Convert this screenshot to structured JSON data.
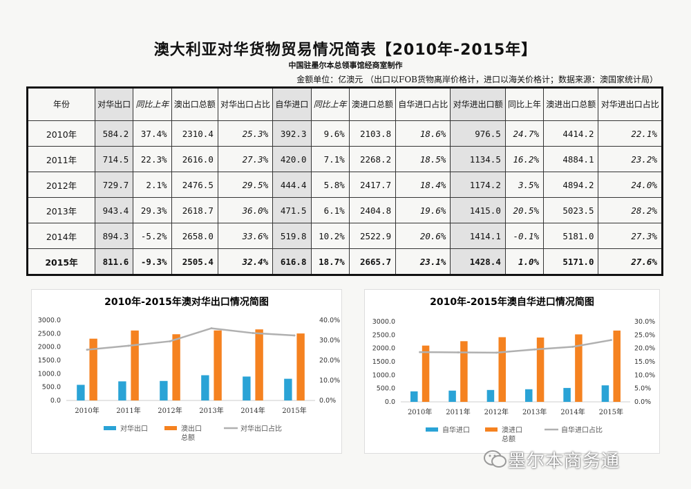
{
  "title": "澳大利亚对华货物贸易情况简表【2010年-2015年】",
  "subtitle": "中国驻墨尔本总领事馆经商室制作",
  "unit_note": "金额单位：亿澳元 （出口以FOB货物离岸价格计，进口以海关价格计；数据来源：澳国家统计局）",
  "table": {
    "headers": [
      "年份",
      "对华出口",
      "同比上年",
      "澳出口总额",
      "对华出口占比",
      "自华进口",
      "同比上年",
      "澳进口总额",
      "自华进口占比",
      "对华进出口额",
      "同比上年",
      "澳进出口总额",
      "对华进出口占比"
    ],
    "rows": [
      [
        "2010年",
        "584.2",
        "37.4%",
        "2310.4",
        "25.3%",
        "392.3",
        "9.6%",
        "2103.8",
        "18.6%",
        "976.5",
        "24.7%",
        "4414.2",
        "22.1%"
      ],
      [
        "2011年",
        "714.5",
        "22.3%",
        "2616.0",
        "27.3%",
        "420.0",
        "7.1%",
        "2268.2",
        "18.5%",
        "1134.5",
        "16.2%",
        "4884.1",
        "23.2%"
      ],
      [
        "2012年",
        "729.7",
        "2.1%",
        "2476.5",
        "29.5%",
        "444.4",
        "5.8%",
        "2417.7",
        "18.4%",
        "1174.2",
        "3.5%",
        "4894.2",
        "24.0%"
      ],
      [
        "2013年",
        "943.4",
        "29.3%",
        "2618.7",
        "36.0%",
        "471.5",
        "6.1%",
        "2404.8",
        "19.6%",
        "1415.0",
        "20.5%",
        "5023.5",
        "28.2%"
      ],
      [
        "2014年",
        "894.3",
        "-5.2%",
        "2658.0",
        "33.6%",
        "519.8",
        "10.2%",
        "2522.9",
        "20.6%",
        "1414.1",
        "-0.1%",
        "5181.0",
        "27.3%"
      ],
      [
        "2015年",
        "811.6",
        "-9.3%",
        "2505.4",
        "32.4%",
        "616.8",
        "18.7%",
        "2665.7",
        "23.1%",
        "1428.4",
        "1.0%",
        "5171.0",
        "27.6%"
      ]
    ]
  },
  "chart_data": [
    {
      "type": "bar",
      "title": "2010年-2015年澳对华出口情况简图",
      "categories": [
        "2010年",
        "2011年",
        "2012年",
        "2013年",
        "2014年",
        "2015年"
      ],
      "series": [
        {
          "name": "对华出口",
          "kind": "bar",
          "color": "#2aa3d6",
          "values": [
            584.2,
            714.5,
            729.7,
            943.4,
            894.3,
            811.6
          ]
        },
        {
          "name": "澳出口总额",
          "kind": "bar",
          "color": "#f58220",
          "values": [
            2310.4,
            2616.0,
            2476.5,
            2618.7,
            2658.0,
            2505.4
          ]
        },
        {
          "name": "对华出口占比",
          "kind": "line",
          "axis": "right",
          "color": "#b0b0b0",
          "values": [
            25.3,
            27.3,
            29.5,
            36.0,
            33.6,
            32.4
          ]
        }
      ],
      "ylim": [
        0,
        3000
      ],
      "yticks": [
        "0.0",
        "500.0",
        "1000.0",
        "1500.0",
        "2000.0",
        "2500.0",
        "3000.0"
      ],
      "y2lim": [
        0,
        40
      ],
      "y2ticks": [
        "0.0%",
        "10.0%",
        "20.0%",
        "30.0%",
        "40.0%"
      ]
    },
    {
      "type": "bar",
      "title": "2010年-2015年澳自华进口情况简图",
      "categories": [
        "2010年",
        "2011年",
        "2012年",
        "2013年",
        "2014年",
        "2015年"
      ],
      "series": [
        {
          "name": "自华进口",
          "kind": "bar",
          "color": "#2aa3d6",
          "values": [
            392.3,
            420.0,
            444.4,
            471.5,
            519.8,
            616.8
          ]
        },
        {
          "name": "澳进口总额",
          "kind": "bar",
          "color": "#f58220",
          "values": [
            2103.8,
            2268.2,
            2417.7,
            2404.8,
            2522.9,
            2665.7
          ]
        },
        {
          "name": "自华进口占比",
          "kind": "line",
          "axis": "right",
          "color": "#b0b0b0",
          "values": [
            18.6,
            18.5,
            18.4,
            19.6,
            20.6,
            23.1
          ]
        }
      ],
      "ylim": [
        0,
        3000
      ],
      "yticks": [
        "0.0",
        "500.0",
        "1000.0",
        "1500.0",
        "2000.0",
        "2500.0",
        "3000.0"
      ],
      "y2lim": [
        0,
        30
      ],
      "y2ticks": [
        "0.0%",
        "5.0%",
        "10.0%",
        "15.0%",
        "20.0%",
        "25.0%",
        "30.0%"
      ]
    }
  ],
  "watermark": "墨尔本商务通"
}
